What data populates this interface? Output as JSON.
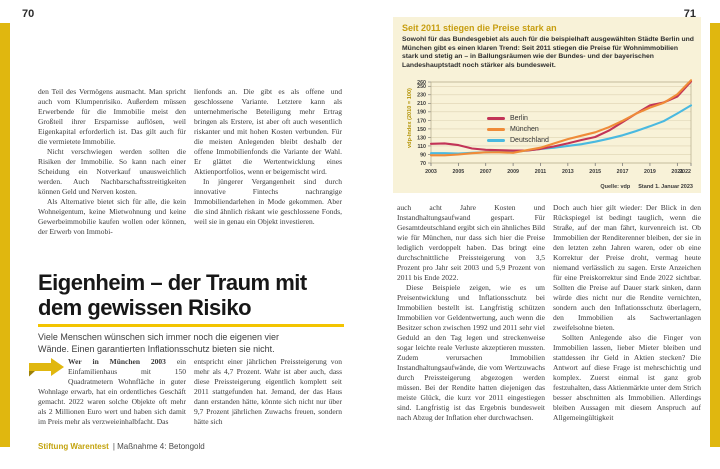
{
  "left_page": {
    "page_number": "70",
    "columns_top": {
      "col1": [
        "den Teil des Vermögens ausmacht. Man spricht auch vom Klumpenrisiko. Außerdem müssen Erwerbende für die Immobilie meist den Großteil ihrer Ersparnisse auflösen, weil Eigenkapital erforderlich ist. Das gilt auch für die vermietete Immobilie.",
        "Nicht verschwiegen werden sollten die Risiken der Immobilie. So kann nach einer Scheidung ein Notverkauf unausweichlich werden. Auch Nachbarschaftsstreitigkeiten können Geld und Nerven kosten.",
        "Als Alternative bietet sich für alle, die kein Wohneigentum, keine Mietwohnung und keine Gewerbeimmobilie kaufen wollen oder können, der Erwerb von Immobi-"
      ],
      "col2": [
        "lienfonds an. Die gibt es als offene und geschlossene Variante. Letztere kann als unternehmerische Beteiligung mehr Ertrag bringen als Erstere, ist aber oft auch wesentlich riskanter und mit hohen Kosten verbunden. Für die meisten Anlegenden bleibt deshalb der offene Immobilienfonds die Variante der Wahl. Er glättet die Wertentwicklung eines Aktienportfolios, wenn er beigemischt wird.",
        "In jüngerer Vergangenheit sind durch innovative Fintechs nachrangige Immobiliendarlehen in Mode gekommen. Aber die sind ähnlich riskant wie geschlossene Fonds, weil sie in genau ein Objekt investieren."
      ]
    },
    "headline": "Eigenheim – der Traum mit dem gewissen Risiko",
    "standfirst": "Viele Menschen wünschen sich immer noch die eigenen vier Wände. Einen garantierten Inflationsschutz bieten sie nicht.",
    "intro": {
      "lead_bold": "Wer in München 2003",
      "lead_rest": " ein Einfamilienhaus mit 150 Quadratmetern Wohnfläche in guter Wohnlage erwarb, hat ein ordentliches Geschäft gemacht. 2022 waren solche Objekte oft mehr als 2 Millionen Euro wert und haben sich damit im Preis mehr als verzweieinhalbfacht. Das",
      "col2": [
        "entspricht einer jährlichen Preissteigerung von mehr als 4,7 Prozent. Wahr ist aber auch, dass diese Preissteigerung eigentlich komplett seit 2011 stattgefunden hat. Jemand, der das Haus dann erstanden hätte, könnte sich nicht nur über 9,7 Prozent jährlichen Zuwachs freuen, sondern hätte sich"
      ]
    },
    "footer": {
      "brand": "Stiftung Warentest",
      "chapter": "| Maßnahme 4: Betongold"
    }
  },
  "right_page": {
    "page_number": "71",
    "columns": {
      "col1": [
        "auch acht Jahre Kosten und Instandhaltungsaufwand gespart. Für Gesamtdeutschland ergibt sich ein ähnliches Bild wie für München, nur dass sich hier die Preise lediglich verdoppelt haben. Das bringt eine durchschnittliche Preissteigerung von 3,5 Prozent pro Jahr seit 2003 und 5,9 Prozent von 2011 bis Ende 2022.",
        "Diese Beispiele zeigen, wie es um Preisentwicklung und Inflationsschutz bei Immobilien bestellt ist. Langfristig schützen Immobilien vor Geldentwertung, auch wenn die Besitzer schon zwischen 1992 und 2011 sehr viel Geduld an den Tag legen und streckenweise sogar leichte reale Verluste akzeptieren mussten. Zudem verursachen Immobilien Instandhaltungsaufwände, die vom Wertzuwachs durch Preissteigerung abgezogen werden müssen. Bei der Rendite hatten diejenigen das meiste Glück, die kurz vor 2011 eingestiegen sind. Langfristig ist das Ergebnis bundesweit nach Abzug der Inflation eher durchwachsen."
      ],
      "col2": [
        "Doch auch hier gilt wieder: Der Blick in den Rückspiegel ist bedingt tauglich, wenn die Straße, auf der man fährt, kurvenreich ist. Ob Immobilien der Renditerenner bleiben, der sie in den letzten zehn Jahren waren, oder ob eine Korrektur der Preise droht, vermag heute niemand verlässlich zu sagen. Erste Anzeichen für eine Preiskorrektur sind Ende 2022 sichtbar. Sollten die Preise auf Dauer stark sinken, dann würde dies nicht nur die Rendite vernichten, sondern auch den Inflationsschutz überlagern, den Immobilien als Sachwertanlagen zweifelsohne bieten.",
        "Sollten Anlegende also die Finger von Immobilien lassen, lieber Mieter bleiben und stattdessen ihr Geld in Aktien stecken? Die Antwort auf diese Frage ist mehrschichtig und komplex. Zuerst einmal ist ganz grob festzuhalten, dass Aktienmärkte unter dem Strich besser abschnitten als Immobilien. Allerdings bleiben Aussagen mit diesem Anspruch auf Allgemeingültigkeit"
      ]
    }
  },
  "chart_data": {
    "type": "line",
    "title": "Seit 2011 stiegen die Preise stark an",
    "subtitle": "Sowohl für das Bundesgebiet als auch für die beispielhaft ausgewählten Städte Berlin und München gibt es einen klaren Trend: Seit 2011 stiegen die Preise für Wohnimmobilien stark und stetig an – in Ballungsräumen wie der Bundes- und der bayerischen Landeshauptstadt noch stärker als bundesweit.",
    "ylabel": "vdp-Index (2010 = 100)",
    "x": [
      2003,
      2004,
      2005,
      2006,
      2007,
      2008,
      2009,
      2010,
      2011,
      2012,
      2013,
      2014,
      2015,
      2016,
      2017,
      2018,
      2019,
      2020,
      2021,
      2022
    ],
    "series": [
      {
        "name": "Berlin",
        "color": "#c23457",
        "values": [
          115,
          116,
          112,
          104,
          101,
          100,
          99,
          99,
          103,
          109,
          116,
          124,
          131,
          146,
          166,
          186,
          205,
          212,
          226,
          261
        ]
      },
      {
        "name": "München",
        "color": "#ef8b38",
        "values": [
          88,
          88,
          90,
          93,
          95,
          95,
          94,
          100,
          106,
          116,
          126,
          134,
          142,
          154,
          169,
          186,
          200,
          211,
          231,
          264
        ]
      },
      {
        "name": "Deutschland",
        "color": "#4ab9e0",
        "values": [
          93,
          93,
          92,
          94,
          95,
          97,
          96,
          99,
          103,
          106,
          110,
          114,
          120,
          127,
          135,
          145,
          156,
          168,
          186,
          205
        ]
      }
    ],
    "ylim": [
      70,
      260
    ],
    "yticks": [
      70,
      90,
      110,
      130,
      150,
      170,
      190,
      210,
      230,
      250,
      260
    ],
    "xticks": [
      2003,
      2005,
      2007,
      2009,
      2011,
      2013,
      2015,
      2017,
      2019,
      2021,
      2022
    ],
    "grid": true,
    "legend_position": "inside-left",
    "source": "Quelle: vdp",
    "stand": "Stand 1. Januar 2023",
    "background": "#f8f2d8",
    "accent_yellow": "#e0b70f"
  }
}
